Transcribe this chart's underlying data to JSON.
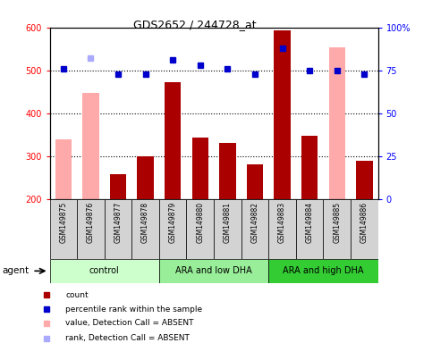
{
  "title": "GDS2652 / 244728_at",
  "samples": [
    "GSM149875",
    "GSM149876",
    "GSM149877",
    "GSM149878",
    "GSM149879",
    "GSM149880",
    "GSM149881",
    "GSM149882",
    "GSM149883",
    "GSM149884",
    "GSM149885",
    "GSM149886"
  ],
  "groups": [
    {
      "label": "control",
      "color": "#ccffcc",
      "start": 0,
      "end": 4
    },
    {
      "label": "ARA and low DHA",
      "color": "#99ee99",
      "start": 4,
      "end": 8
    },
    {
      "label": "ARA and high DHA",
      "color": "#33cc33",
      "start": 8,
      "end": 12
    }
  ],
  "bar_values": [
    null,
    null,
    258,
    299,
    472,
    344,
    330,
    280,
    593,
    347,
    null,
    288
  ],
  "absent_bar_values": [
    340,
    447,
    null,
    null,
    null,
    null,
    null,
    null,
    null,
    null,
    554,
    null
  ],
  "rank_dots": [
    76,
    null,
    73,
    73,
    81,
    78,
    76,
    73,
    88,
    75,
    75,
    73
  ],
  "absent_rank_dots": [
    null,
    82,
    null,
    null,
    null,
    null,
    null,
    null,
    null,
    null,
    null,
    null
  ],
  "ylim_left": [
    200,
    600
  ],
  "ylim_right": [
    0,
    100
  ],
  "yticks_left": [
    200,
    300,
    400,
    500,
    600
  ],
  "yticks_right": [
    0,
    25,
    50,
    75,
    100
  ],
  "right_tick_labels": [
    "0",
    "25",
    "50",
    "75",
    "100%"
  ],
  "hlines": [
    300,
    400,
    500
  ],
  "bar_color": "#aa0000",
  "absent_bar_color": "#ffaaaa",
  "rank_color": "#0000cc",
  "absent_rank_color": "#aaaaff",
  "agent_label": "agent",
  "legend_items": [
    {
      "color": "#aa0000",
      "label": "count"
    },
    {
      "color": "#0000cc",
      "label": "percentile rank within the sample"
    },
    {
      "color": "#ffaaaa",
      "label": "value, Detection Call = ABSENT"
    },
    {
      "color": "#aaaaff",
      "label": "rank, Detection Call = ABSENT"
    }
  ]
}
